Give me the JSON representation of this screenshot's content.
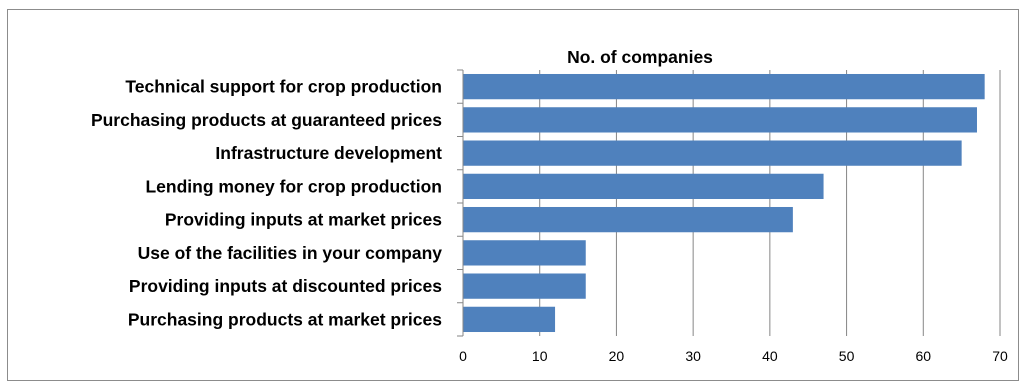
{
  "chart_data": {
    "type": "bar",
    "orientation": "horizontal",
    "title": "No. of companies",
    "categories": [
      "Technical support for crop production",
      "Purchasing products at guaranteed prices",
      "Infrastructure development",
      "Lending money for crop production",
      "Providing inputs at market prices",
      "Use of the facilities in your company",
      "Providing inputs at discounted prices",
      "Purchasing products at market prices"
    ],
    "values": [
      68,
      67,
      65,
      47,
      43,
      16,
      16,
      12
    ],
    "xlim": [
      0,
      70
    ],
    "xticks": [
      0,
      10,
      20,
      30,
      40,
      50,
      60,
      70
    ],
    "xtick_labels": [
      "0",
      "10",
      "20",
      "30",
      "40",
      "50",
      "60",
      "70"
    ],
    "grid": "vertical",
    "legend": "none",
    "colors": {
      "bar": "#4f81bd",
      "grid": "#868686",
      "axis": "#868686"
    }
  }
}
